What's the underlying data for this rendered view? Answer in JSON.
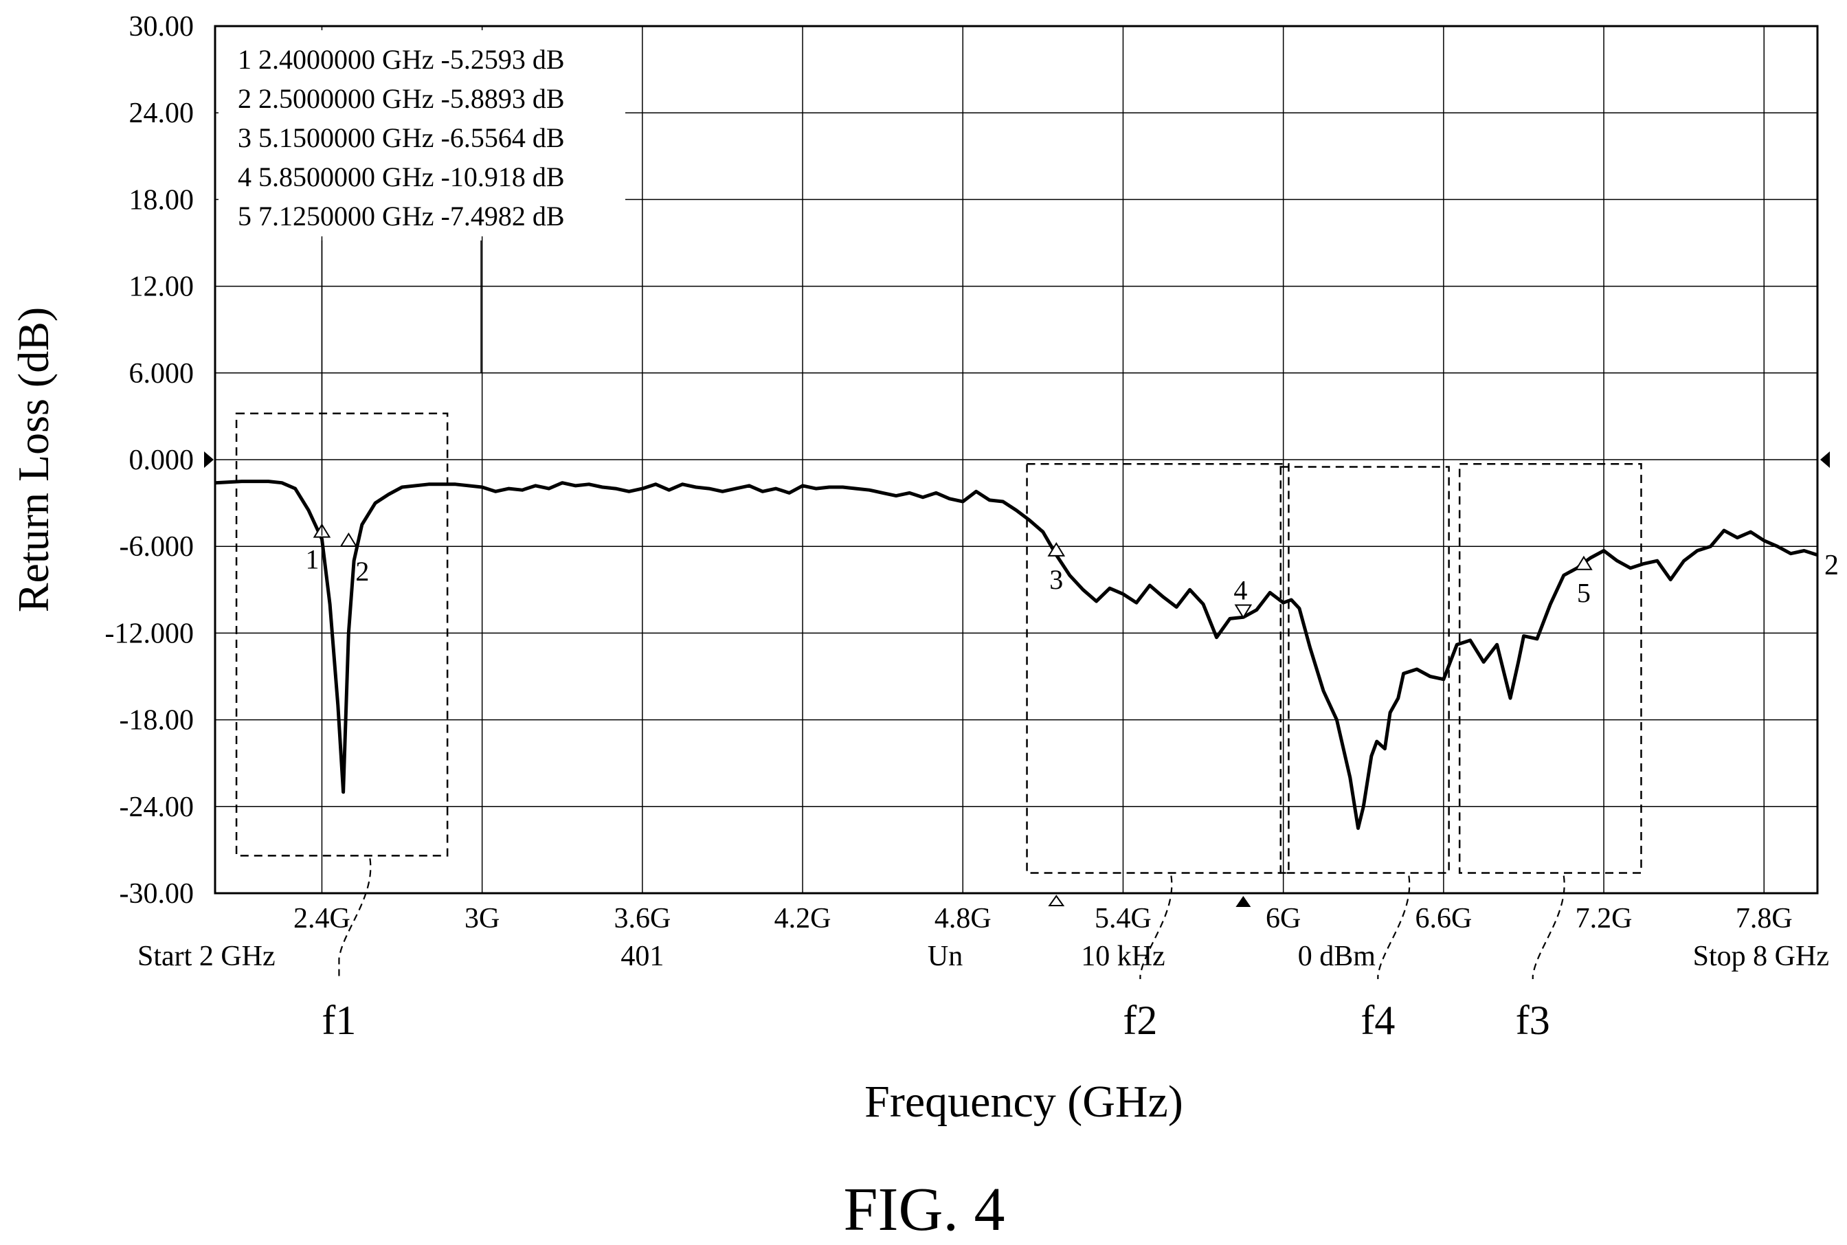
{
  "figure_label": "FIG. 4",
  "chart_data": {
    "type": "line",
    "title": "",
    "xlabel": "Frequency (GHz)",
    "ylabel": "Return Loss (dB)",
    "xlim": [
      2.0,
      8.0
    ],
    "ylim": [
      -30,
      30
    ],
    "grid": true,
    "y_ticks": [
      {
        "value": 30,
        "label": "30.00"
      },
      {
        "value": 24,
        "label": "24.00"
      },
      {
        "value": 18,
        "label": "18.00"
      },
      {
        "value": 12,
        "label": "12.00"
      },
      {
        "value": 6,
        "label": "6.000"
      },
      {
        "value": 0,
        "label": "0.000"
      },
      {
        "value": -6,
        "label": "-6.000"
      },
      {
        "value": -12,
        "label": "-12.000"
      },
      {
        "value": -18,
        "label": "-18.00"
      },
      {
        "value": -24,
        "label": "-24.00"
      },
      {
        "value": -30,
        "label": "-30.00"
      }
    ],
    "x_ticks": [
      {
        "value": 2.4,
        "label": "2.4G"
      },
      {
        "value": 3.0,
        "label": "3G"
      },
      {
        "value": 3.6,
        "label": "3.6G"
      },
      {
        "value": 4.2,
        "label": "4.2G"
      },
      {
        "value": 4.8,
        "label": "4.8G"
      },
      {
        "value": 5.4,
        "label": "5.4G"
      },
      {
        "value": 6.0,
        "label": "6G"
      },
      {
        "value": 6.6,
        "label": "6.6G"
      },
      {
        "value": 7.2,
        "label": "7.2G"
      },
      {
        "value": 7.8,
        "label": "7.8G"
      }
    ],
    "footer_labels": [
      {
        "x": 2.0,
        "text": "Start 2 GHz",
        "anchor": "start"
      },
      {
        "x": 3.6,
        "text": "401",
        "anchor": "middle"
      },
      {
        "x": 4.8,
        "text": "Un",
        "anchor": "end"
      },
      {
        "x": 5.4,
        "text": "10 kHz",
        "anchor": "middle"
      },
      {
        "x": 6.2,
        "text": "0 dBm",
        "anchor": "middle"
      },
      {
        "x": 8.0,
        "text": "Stop 8 GHz",
        "anchor": "end"
      }
    ],
    "marker_table": [
      "1 2.4000000 GHz -5.2593 dB",
      "2 2.5000000 GHz -5.8893 dB",
      "3 5.1500000 GHz -6.5564 dB",
      "4 5.8500000 GHz -10.918 dB",
      "5 7.1250000 GHz -7.4982 dB"
    ],
    "markers": [
      {
        "id": "1",
        "x": 2.4,
        "y": -5.2593
      },
      {
        "id": "2",
        "x": 2.5,
        "y": -5.8893
      },
      {
        "id": "3",
        "x": 5.15,
        "y": -6.5564
      },
      {
        "id": "4",
        "x": 5.85,
        "y": -10.918
      },
      {
        "id": "5",
        "x": 7.125,
        "y": -7.4982
      }
    ],
    "trace_end_label": "2",
    "series": [
      {
        "x": [
          2.0,
          2.1,
          2.2,
          2.25,
          2.3,
          2.35,
          2.4,
          2.43,
          2.46,
          2.48,
          2.5,
          2.52,
          2.55,
          2.6,
          2.65,
          2.7,
          2.8,
          2.9,
          3.0,
          3.05,
          3.1,
          3.15,
          3.2,
          3.25,
          3.3,
          3.35,
          3.4,
          3.45,
          3.5,
          3.55,
          3.6,
          3.65,
          3.7,
          3.75,
          3.8,
          3.85,
          3.9,
          3.95,
          4.0,
          4.05,
          4.1,
          4.15,
          4.2,
          4.25,
          4.3,
          4.35,
          4.4,
          4.45,
          4.5,
          4.55,
          4.6,
          4.65,
          4.7,
          4.75,
          4.8,
          4.85,
          4.9,
          4.95,
          5.0,
          5.05,
          5.1,
          5.15,
          5.2,
          5.25,
          5.3,
          5.35,
          5.4,
          5.45,
          5.5,
          5.55,
          5.6,
          5.65,
          5.7,
          5.75,
          5.8,
          5.85,
          5.9,
          5.95,
          6.0,
          6.03,
          6.06,
          6.1,
          6.15,
          6.2,
          6.25,
          6.28,
          6.3,
          6.33,
          6.35,
          6.38,
          6.4,
          6.43,
          6.45,
          6.5,
          6.55,
          6.6,
          6.65,
          6.7,
          6.75,
          6.8,
          6.85,
          6.88,
          6.9,
          6.95,
          7.0,
          7.05,
          7.08,
          7.1,
          7.12,
          7.15,
          7.2,
          7.25,
          7.3,
          7.35,
          7.4,
          7.45,
          7.5,
          7.55,
          7.6,
          7.65,
          7.7,
          7.75,
          7.8,
          7.85,
          7.9,
          7.95,
          8.0
        ],
        "values": [
          -1.6,
          -1.5,
          -1.5,
          -1.6,
          -2.0,
          -3.5,
          -5.5,
          -10.0,
          -17.0,
          -23.0,
          -12.0,
          -7.0,
          -4.5,
          -3.0,
          -2.4,
          -1.9,
          -1.7,
          -1.7,
          -1.9,
          -2.2,
          -2.0,
          -2.1,
          -1.8,
          -2.0,
          -1.6,
          -1.8,
          -1.7,
          -1.9,
          -2.0,
          -2.2,
          -2.0,
          -1.7,
          -2.1,
          -1.7,
          -1.9,
          -2.0,
          -2.2,
          -2.0,
          -1.8,
          -2.2,
          -2.0,
          -2.3,
          -1.8,
          -2.0,
          -1.9,
          -1.9,
          -2.0,
          -2.1,
          -2.3,
          -2.5,
          -2.3,
          -2.6,
          -2.3,
          -2.7,
          -2.9,
          -2.2,
          -2.8,
          -2.9,
          -3.5,
          -4.2,
          -5.0,
          -6.6,
          -8.0,
          -9.0,
          -9.8,
          -8.9,
          -9.3,
          -9.9,
          -8.7,
          -9.5,
          -10.2,
          -9.0,
          -10.0,
          -12.3,
          -11.0,
          -10.9,
          -10.4,
          -9.2,
          -9.9,
          -9.7,
          -10.3,
          -13.0,
          -16.0,
          -18.0,
          -22.0,
          -25.5,
          -24.0,
          -20.5,
          -19.5,
          -20.0,
          -17.5,
          -16.5,
          -14.8,
          -14.5,
          -15.0,
          -15.2,
          -12.8,
          -12.5,
          -14.0,
          -12.8,
          -16.5,
          -14.0,
          -12.2,
          -12.4,
          -10.0,
          -8.0,
          -7.7,
          -7.5,
          -7.2,
          -6.8,
          -6.3,
          -7.0,
          -7.5,
          -7.2,
          -7.0,
          -8.3,
          -7.0,
          -6.3,
          -6.0,
          -4.9,
          -5.4,
          -5.0,
          -5.6,
          -6.0,
          -6.5,
          -6.3,
          -6.6
        ]
      }
    ],
    "regions": [
      {
        "label": "f1",
        "x0": 2.08,
        "x1": 2.87,
        "y0": 3.2,
        "y1": -27.4,
        "label_x": 2.58
      },
      {
        "label": "f2",
        "x0": 5.04,
        "x1": 6.02,
        "y0": -0.3,
        "y1": -28.6,
        "label_x": 5.58
      },
      {
        "label": "f4",
        "x0": 5.99,
        "x1": 6.62,
        "y0": -0.5,
        "y1": -28.6,
        "label_x": 6.47
      },
      {
        "label": "f3",
        "x0": 6.66,
        "x1": 7.34,
        "y0": -0.3,
        "y1": -28.6,
        "label_x": 7.05
      }
    ]
  }
}
